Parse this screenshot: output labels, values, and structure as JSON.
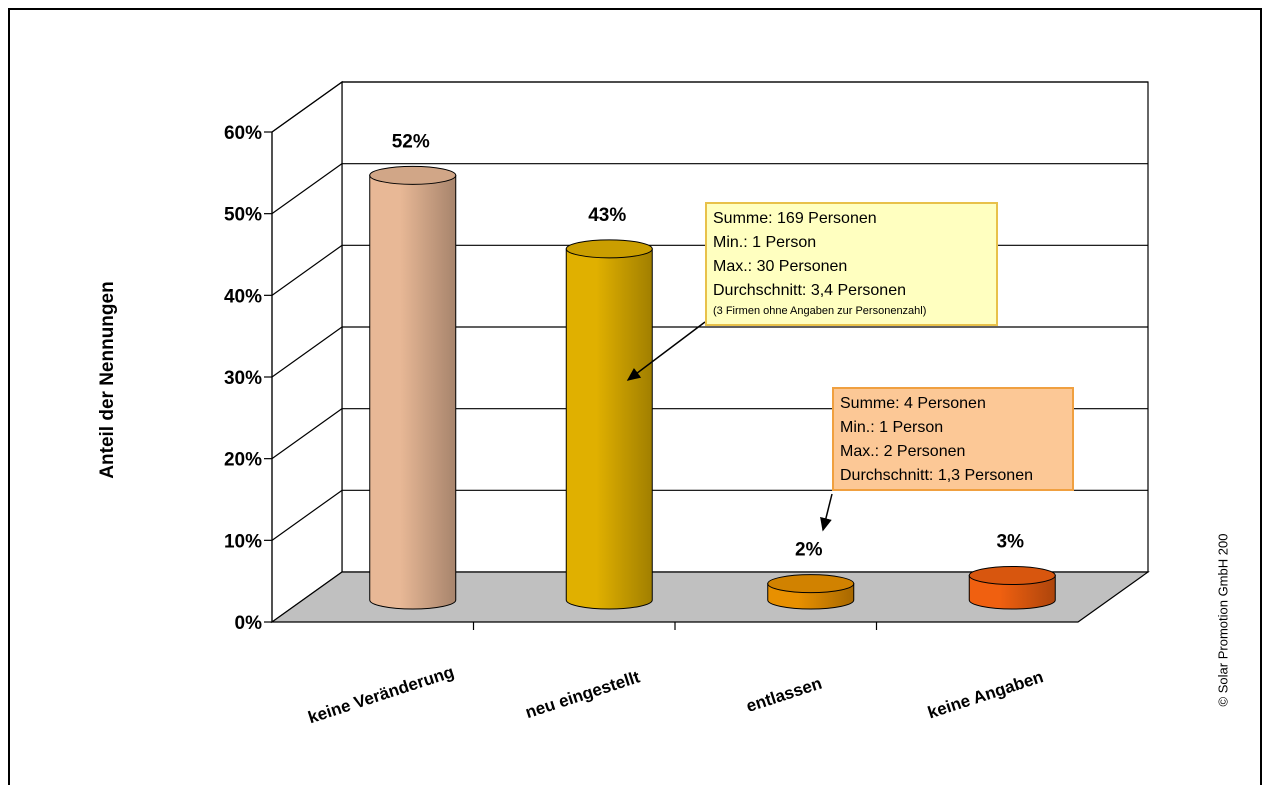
{
  "chart_data": {
    "type": "bar",
    "style": "3d-cylinder",
    "categories": [
      "keine Veränderung",
      "neu eingestellt",
      "entlassen",
      "keine Angaben"
    ],
    "values": [
      52,
      43,
      2,
      3
    ],
    "data_labels": [
      "52%",
      "43%",
      "2%",
      "3%"
    ],
    "colors": [
      "#e8b896",
      "#e0b000",
      "#e89000",
      "#f06010"
    ],
    "ylabel": "Anteil der Nennungen",
    "ylim": [
      0,
      60
    ],
    "yticks": [
      "0%",
      "10%",
      "20%",
      "30%",
      "40%",
      "50%",
      "60%"
    ],
    "grid": true,
    "legend": "none",
    "floor_color": "#c0c0c0"
  },
  "annotations": {
    "neu_eingestellt": {
      "lines": [
        "Summe: 169 Personen",
        "Min.: 1 Person",
        "Max.: 30 Personen",
        "Durchschnitt: 3,4 Personen"
      ],
      "note": "(3 Firmen ohne Angaben zur Personenzahl)"
    },
    "entlassen": {
      "lines": [
        "Summe: 4 Personen",
        "Min.: 1 Person",
        "Max.: 2 Personen",
        "Durchschnitt: 1,3 Personen"
      ]
    }
  },
  "copyright": "© Solar Promotion GmbH 200"
}
